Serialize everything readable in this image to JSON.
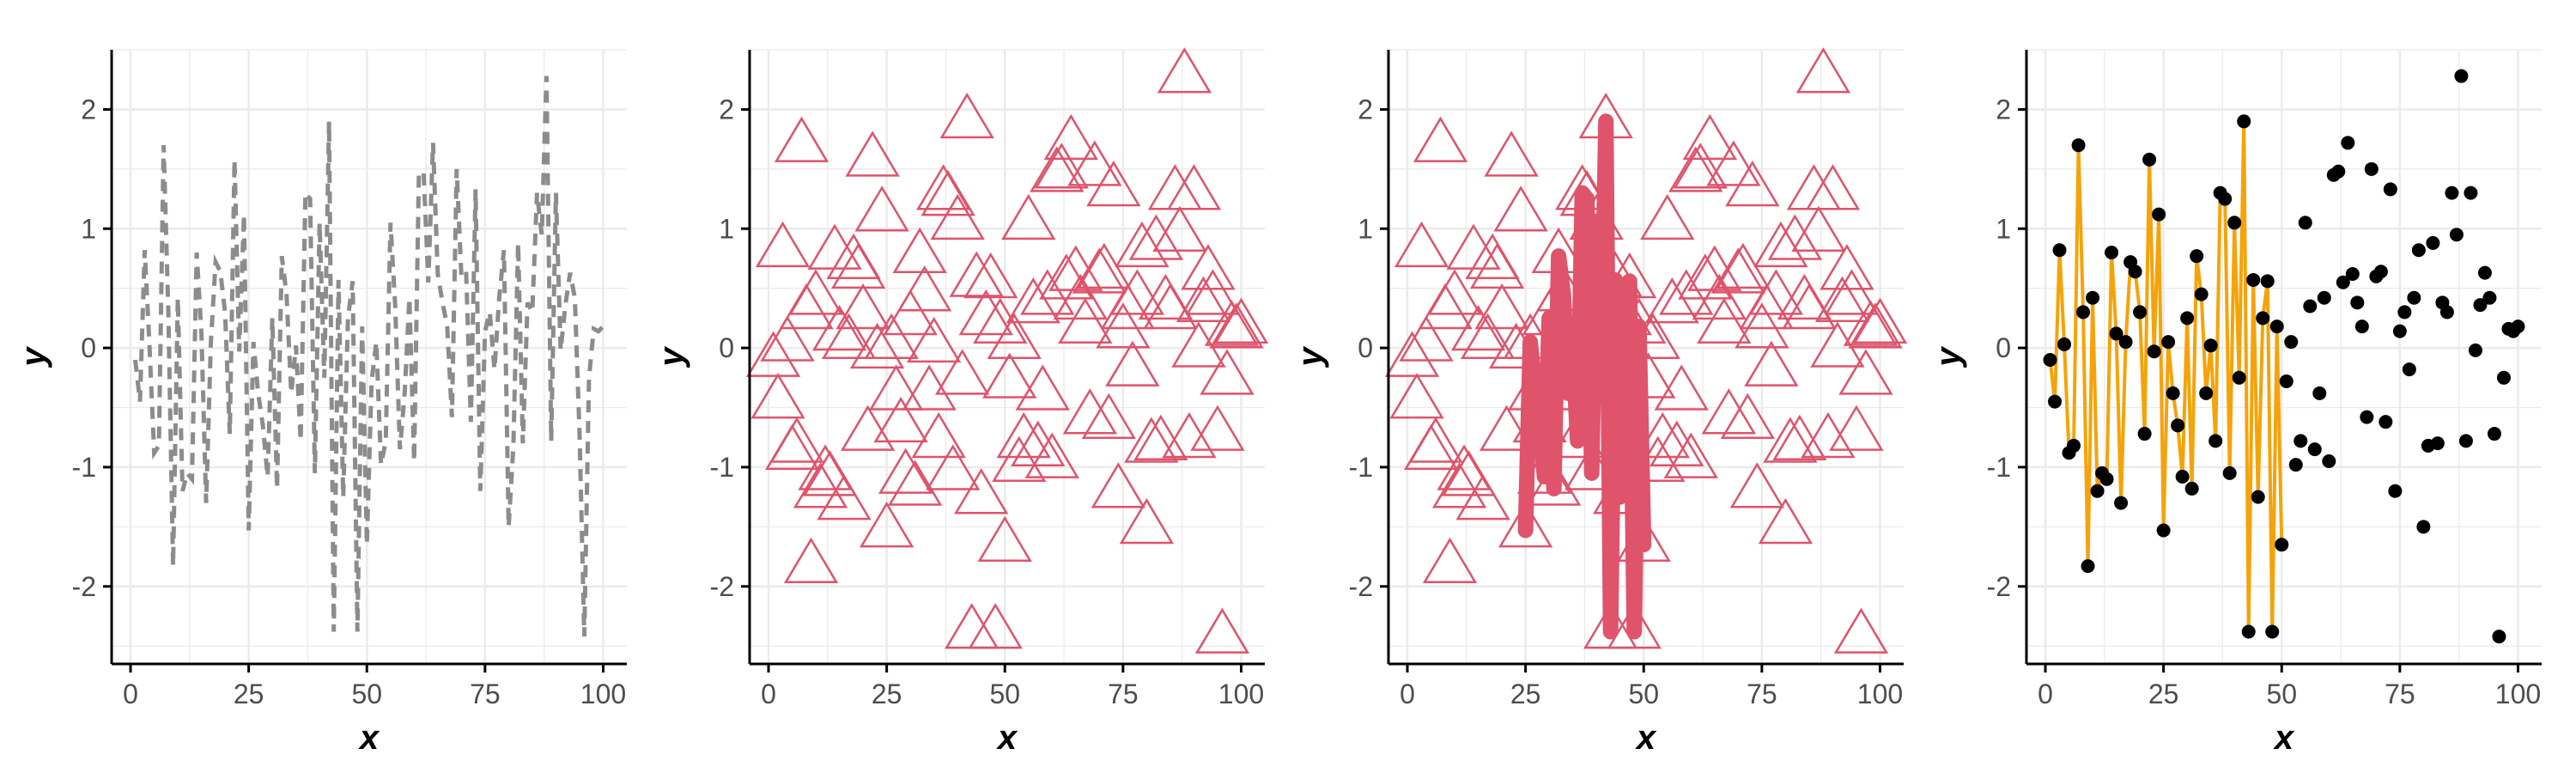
{
  "colors": {
    "grid": "#ebebeb",
    "axis": "#000000",
    "gray_line": "#8c8c8c",
    "red": "#df536b",
    "orange": "#f5a30a",
    "black": "#000000"
  },
  "chart_data": [
    {
      "type": "line",
      "style": "dashed",
      "color": "gray",
      "xlabel": "x",
      "ylabel": "y",
      "xlim": [
        -4,
        105
      ],
      "ylim": [
        -2.65,
        2.5
      ],
      "xticks": [
        "0",
        "25",
        "50",
        "75",
        "100"
      ],
      "yticks": [
        "2",
        "1",
        "0",
        "-1",
        "-2"
      ],
      "grid": true,
      "series": "s1"
    },
    {
      "type": "scatter",
      "marker": "open-triangle",
      "color": "red",
      "xlabel": "x",
      "ylabel": "y",
      "xlim": [
        -4,
        105
      ],
      "ylim": [
        -2.65,
        2.5
      ],
      "xticks": [
        "0",
        "25",
        "50",
        "75",
        "100"
      ],
      "yticks": [
        "2",
        "1",
        "0",
        "-1",
        "-2"
      ],
      "grid": true,
      "series": "s1"
    },
    {
      "type": "scatter",
      "marker": "open-triangle",
      "color": "red",
      "overlay": {
        "type": "line",
        "x_range": [
          25,
          50
        ],
        "thick": true
      },
      "xlabel": "x",
      "ylabel": "y",
      "xlim": [
        -4,
        105
      ],
      "ylim": [
        -2.65,
        2.5
      ],
      "xticks": [
        "0",
        "25",
        "50",
        "75",
        "100"
      ],
      "yticks": [
        "2",
        "1",
        "0",
        "-1",
        "-2"
      ],
      "grid": true,
      "series": "s1"
    },
    {
      "type": "scatter",
      "marker": "filled-circle",
      "color": "black",
      "overlay": {
        "type": "line",
        "x_range": [
          1,
          50
        ],
        "color": "orange"
      },
      "xlabel": "x",
      "ylabel": "y",
      "xlim": [
        -4,
        105
      ],
      "ylim": [
        -2.65,
        2.5
      ],
      "xticks": [
        "0",
        "25",
        "50",
        "75",
        "100"
      ],
      "yticks": [
        "2",
        "1",
        "0",
        "-1",
        "-2"
      ],
      "grid": true,
      "series": "s1"
    }
  ],
  "series_data": {
    "s1": {
      "x": [
        1,
        2,
        3,
        4,
        5,
        6,
        7,
        8,
        9,
        10,
        11,
        12,
        13,
        14,
        15,
        16,
        17,
        18,
        19,
        20,
        21,
        22,
        23,
        24,
        25,
        26,
        27,
        28,
        29,
        30,
        31,
        32,
        33,
        34,
        35,
        36,
        37,
        38,
        39,
        40,
        41,
        42,
        43,
        44,
        45,
        46,
        47,
        48,
        49,
        50,
        51,
        52,
        53,
        54,
        55,
        56,
        57,
        58,
        59,
        60,
        61,
        62,
        63,
        64,
        65,
        66,
        67,
        68,
        69,
        70,
        71,
        72,
        73,
        74,
        75,
        76,
        77,
        78,
        79,
        80,
        81,
        82,
        83,
        84,
        85,
        86,
        87,
        88,
        89,
        90,
        91,
        92,
        93,
        94,
        95,
        96,
        97,
        98,
        99,
        100
      ],
      "y": [
        -0.1,
        -0.45,
        0.82,
        0.03,
        -0.88,
        -0.82,
        1.7,
        0.3,
        -1.83,
        0.42,
        -1.2,
        -1.05,
        -1.1,
        0.8,
        0.12,
        -1.3,
        0.05,
        0.72,
        0.64,
        0.3,
        -0.72,
        1.58,
        -0.03,
        1.12,
        -1.53,
        0.05,
        -0.38,
        -0.65,
        -1.08,
        0.25,
        -1.18,
        0.77,
        0.45,
        -0.38,
        0.02,
        -0.78,
        1.3,
        1.25,
        -1.05,
        1.05,
        -0.25,
        1.9,
        -2.38,
        0.57,
        -1.25,
        0.25,
        0.56,
        -2.38,
        0.18,
        -1.65,
        -0.28,
        0.05,
        -0.98,
        -0.78,
        1.05,
        0.35,
        -0.85,
        -0.38,
        0.42,
        -0.95,
        1.45,
        1.48,
        0.55,
        1.72,
        0.62,
        0.38,
        0.18,
        -0.58,
        1.5,
        0.6,
        0.64,
        -0.62,
        1.33,
        -1.2,
        0.14,
        0.3,
        -0.18,
        0.42,
        0.82,
        -1.5,
        -0.82,
        0.88,
        -0.8,
        0.38,
        0.3,
        1.3,
        0.95,
        2.28,
        -0.78,
        1.3,
        -0.02,
        0.36,
        0.63,
        0.42,
        -0.72,
        -2.42,
        -0.25,
        0.16,
        0.14,
        0.18
      ]
    }
  }
}
